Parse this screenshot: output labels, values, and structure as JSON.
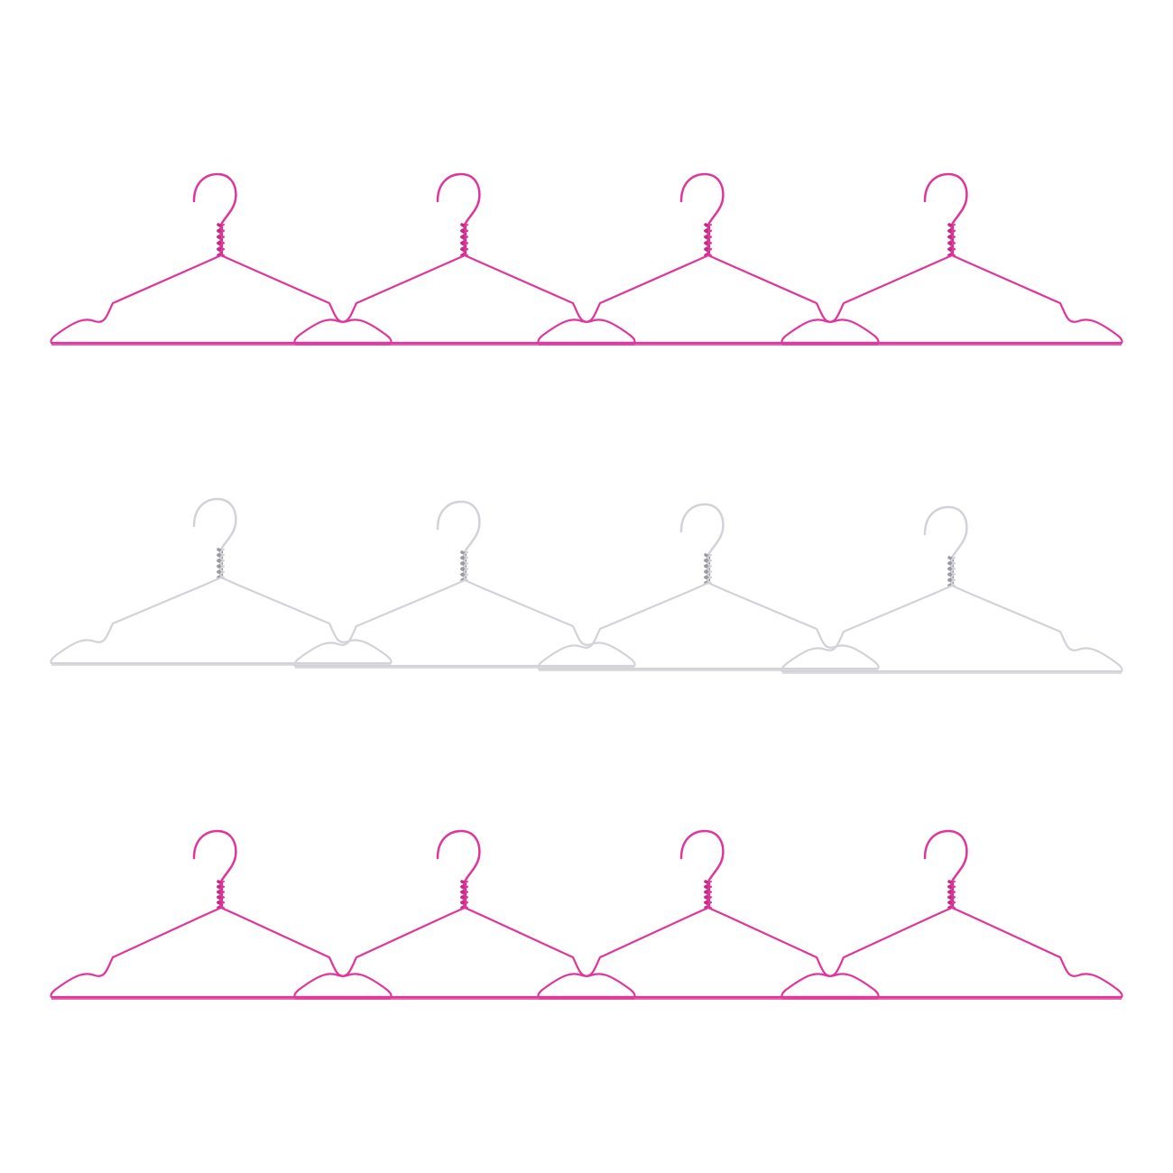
{
  "image": {
    "subject": "wire-clothes-hangers",
    "background_color": "#ffffff"
  },
  "rows": [
    {
      "name": "hanger-row-pink-top",
      "color": "#e0359a",
      "twist_color": "#c42a86",
      "count": 4
    },
    {
      "name": "hanger-row-white-middle",
      "color": "#d2d2d8",
      "twist_color": "#9a9aa2",
      "count": 4
    },
    {
      "name": "hanger-row-pink-bottom",
      "color": "#e0359a",
      "twist_color": "#c42a86",
      "count": 4
    }
  ]
}
